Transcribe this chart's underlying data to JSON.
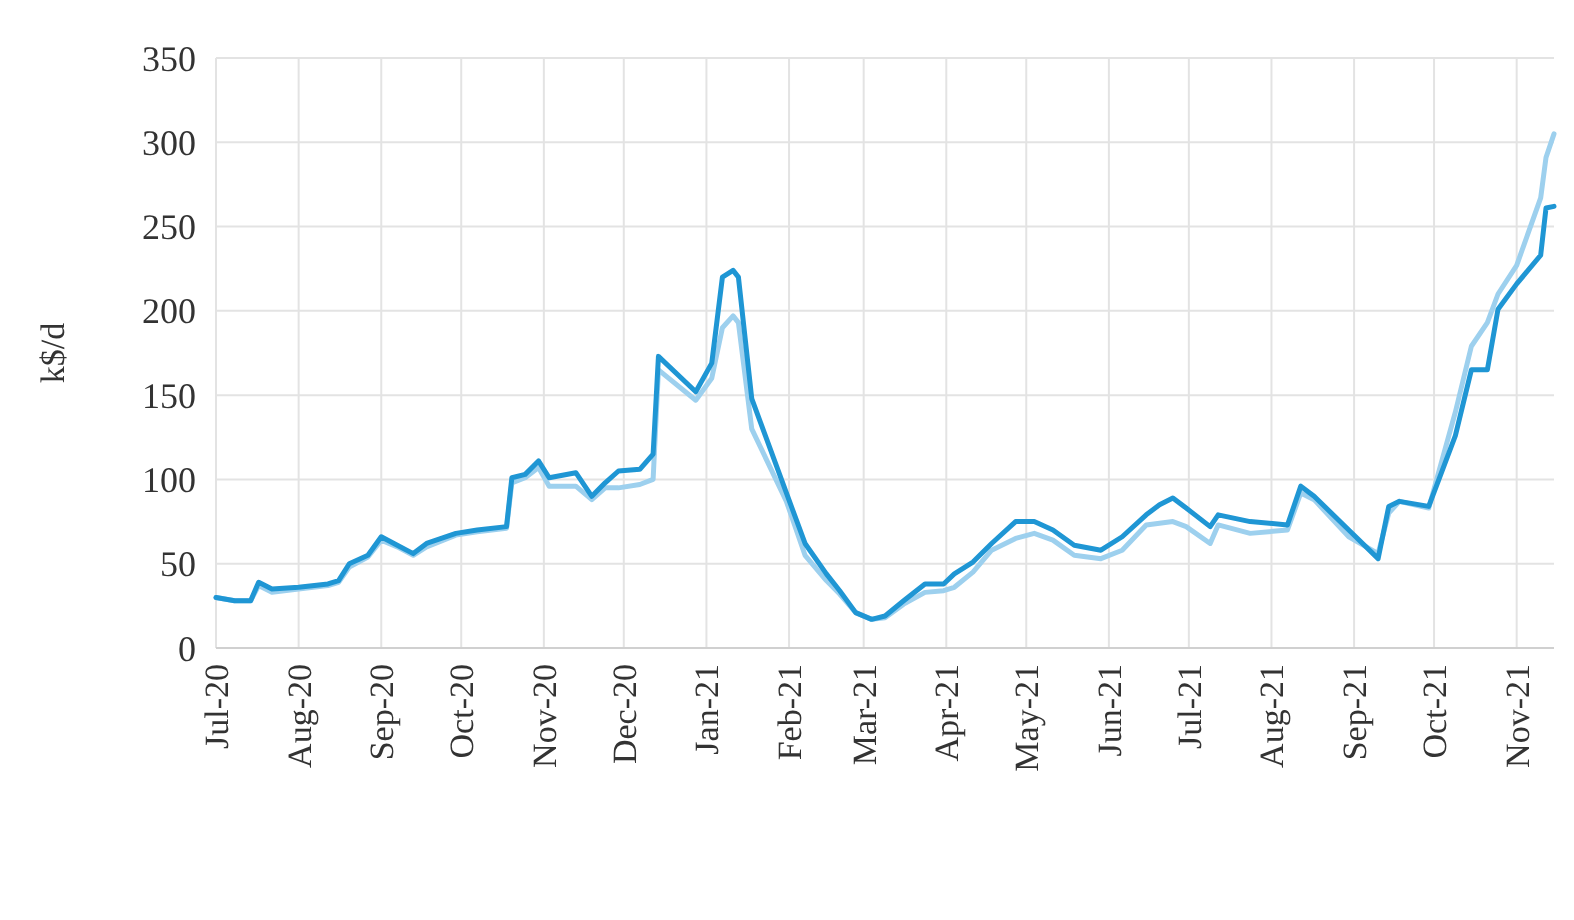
{
  "chart_data": {
    "type": "line",
    "ylabel": "k$/d",
    "x": [
      "2020-07-01",
      "2020-07-08",
      "2020-07-14",
      "2020-07-17",
      "2020-07-22",
      "2020-08-01",
      "2020-08-12",
      "2020-08-16",
      "2020-08-20",
      "2020-08-27",
      "2020-09-01",
      "2020-09-07",
      "2020-09-13",
      "2020-09-18",
      "2020-09-29",
      "2020-10-07",
      "2020-10-18",
      "2020-10-20",
      "2020-10-25",
      "2020-10-30",
      "2020-11-03",
      "2020-11-13",
      "2020-11-19",
      "2020-11-24",
      "2020-11-29",
      "2020-12-07",
      "2020-12-12",
      "2020-12-14",
      "2020-12-28",
      "2021-01-03",
      "2021-01-07",
      "2021-01-11",
      "2021-01-13",
      "2021-01-18",
      "2021-01-31",
      "2021-02-07",
      "2021-02-15",
      "2021-02-20",
      "2021-02-26",
      "2021-03-04",
      "2021-03-09",
      "2021-03-16",
      "2021-03-24",
      "2021-03-31",
      "2021-04-04",
      "2021-04-11",
      "2021-04-18",
      "2021-04-27",
      "2021-05-04",
      "2021-05-11",
      "2021-05-19",
      "2021-05-29",
      "2021-06-06",
      "2021-06-15",
      "2021-06-20",
      "2021-06-25",
      "2021-06-30",
      "2021-07-09",
      "2021-07-12",
      "2021-07-24",
      "2021-08-07",
      "2021-08-12",
      "2021-08-17",
      "2021-08-30",
      "2021-09-10",
      "2021-09-14",
      "2021-09-18",
      "2021-09-29",
      "2021-10-09",
      "2021-10-15",
      "2021-10-21",
      "2021-10-25",
      "2021-11-01",
      "2021-11-10",
      "2021-11-12",
      "2021-11-15"
    ],
    "series": [
      {
        "color": "#9dd0ee",
        "values": [
          30,
          28,
          28,
          37,
          33,
          35,
          37,
          39,
          48,
          54,
          64,
          60,
          55,
          60,
          67,
          69,
          71,
          98,
          101,
          107,
          96,
          96,
          88,
          95,
          95,
          97,
          100,
          165,
          147,
          160,
          190,
          197,
          193,
          130,
          87,
          55,
          40,
          32,
          21,
          17,
          18,
          26,
          33,
          34,
          36,
          45,
          58,
          65,
          68,
          64,
          55,
          53,
          58,
          73,
          74,
          75,
          72,
          62,
          73,
          68,
          70,
          92,
          88,
          66,
          56,
          80,
          87,
          83,
          140,
          179,
          193,
          210,
          227,
          267,
          291,
          305
        ]
      },
      {
        "color": "#1f96d4",
        "values": [
          30,
          28,
          28,
          39,
          35,
          36,
          38,
          40,
          50,
          55,
          66,
          61,
          56,
          62,
          68,
          70,
          72,
          101,
          103,
          111,
          101,
          104,
          90,
          98,
          105,
          106,
          115,
          173,
          152,
          169,
          220,
          224,
          220,
          148,
          92,
          62,
          44,
          34,
          21,
          17,
          19,
          28,
          38,
          38,
          44,
          51,
          62,
          75,
          75,
          70,
          61,
          58,
          66,
          79,
          85,
          89,
          83,
          72,
          79,
          75,
          73,
          96,
          90,
          70,
          53,
          84,
          87,
          84,
          126,
          165,
          165,
          201,
          216,
          233,
          261,
          262
        ]
      }
    ],
    "xlim": [
      "2020-07-01",
      "2021-11-15"
    ],
    "xticks": [
      {
        "value": "2020-07-01",
        "label": "Jul-20"
      },
      {
        "value": "2020-08-01",
        "label": "Aug-20"
      },
      {
        "value": "2020-09-01",
        "label": "Sep-20"
      },
      {
        "value": "2020-10-01",
        "label": "Oct-20"
      },
      {
        "value": "2020-11-01",
        "label": "Nov-20"
      },
      {
        "value": "2020-12-01",
        "label": "Dec-20"
      },
      {
        "value": "2021-01-01",
        "label": "Jan-21"
      },
      {
        "value": "2021-02-01",
        "label": "Feb-21"
      },
      {
        "value": "2021-03-01",
        "label": "Mar-21"
      },
      {
        "value": "2021-04-01",
        "label": "Apr-21"
      },
      {
        "value": "2021-05-01",
        "label": "May-21"
      },
      {
        "value": "2021-06-01",
        "label": "Jun-21"
      },
      {
        "value": "2021-07-01",
        "label": "Jul-21"
      },
      {
        "value": "2021-08-01",
        "label": "Aug-21"
      },
      {
        "value": "2021-09-01",
        "label": "Sep-21"
      },
      {
        "value": "2021-10-01",
        "label": "Oct-21"
      },
      {
        "value": "2021-11-01",
        "label": "Nov-21"
      }
    ],
    "ylim": [
      0,
      350
    ],
    "yticks": [
      0,
      50,
      100,
      150,
      200,
      250,
      300,
      350
    ],
    "grid": true,
    "line_style": "solid",
    "marker": "none"
  }
}
